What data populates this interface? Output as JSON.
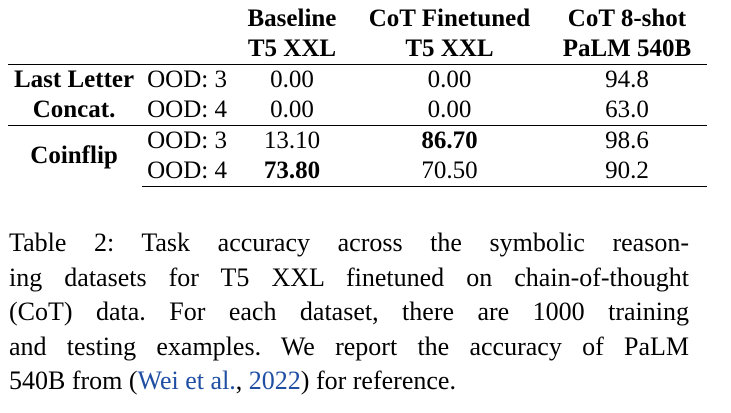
{
  "table": {
    "headers": [
      {
        "line1": "",
        "line2": ""
      },
      {
        "line1": "",
        "line2": ""
      },
      {
        "line1": "Baseline",
        "line2": "T5 XXL"
      },
      {
        "line1": "CoT Finetuned",
        "line2": "T5 XXL"
      },
      {
        "line1": "CoT 8-shot",
        "line2": "PaLM 540B"
      }
    ],
    "groups": [
      {
        "task_line1": "Last Letter",
        "task_line2": "Concat.",
        "rows": [
          {
            "split": "OOD: 3",
            "baseline": "0.00",
            "cot": "0.00",
            "palm": "94.8",
            "bold": ""
          },
          {
            "split": "OOD: 4",
            "baseline": "0.00",
            "cot": "0.00",
            "palm": "63.0",
            "bold": ""
          }
        ]
      },
      {
        "task_line1": "Coinflip",
        "task_line2": "",
        "rows": [
          {
            "split": "OOD: 3",
            "baseline": "13.10",
            "cot": "86.70",
            "palm": "98.6",
            "bold": "cot"
          },
          {
            "split": "OOD: 4",
            "baseline": "73.80",
            "cot": "70.50",
            "palm": "90.2",
            "bold": "baseline"
          }
        ]
      }
    ]
  },
  "caption": {
    "lines": [
      "Table 2: Task accuracy across the symbolic reason-",
      "ing datasets for T5 XXL finetuned on chain-of-thought",
      "(CoT) data. For each dataset, there are 1000 training",
      "and testing examples. We report the accuracy of PaLM"
    ],
    "last_prefix": "540B from (",
    "cite_author": "Wei et al.",
    "cite_sep": ", ",
    "cite_year": "2022",
    "last_suffix": ") for reference."
  },
  "colors": {
    "citation_link": "#1f4ea3"
  }
}
